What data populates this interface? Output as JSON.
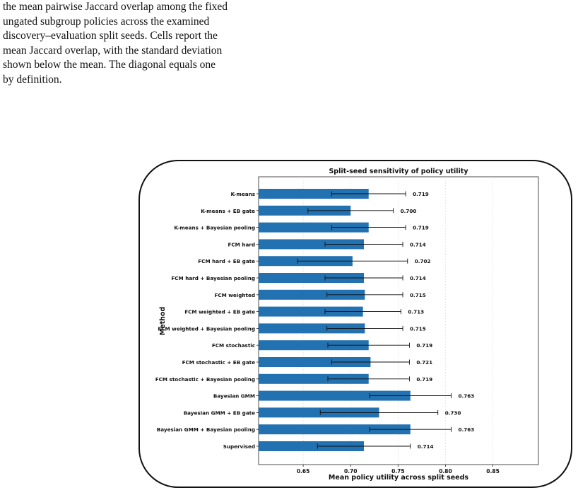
{
  "caption": {
    "lines": [
      "the mean pairwise Jaccard overlap among the fixed",
      "ungated subgroup policies across the examined",
      "discovery–evaluation split seeds. Cells report the",
      "mean Jaccard overlap, with the standard deviation",
      "shown below the mean. The diagonal equals one",
      "by definition."
    ]
  },
  "chart_data": {
    "type": "bar",
    "orientation": "horizontal",
    "title": "Split-seed sensitivity of policy utility",
    "xlabel": "Mean policy utility across split seeds",
    "ylabel": "Method",
    "xlim": [
      0.603,
      0.898
    ],
    "xticks": [
      0.65,
      0.7,
      0.75,
      0.8,
      0.85
    ],
    "xtick_labels": [
      "0.65",
      "0.70",
      "0.75",
      "0.80",
      "0.85"
    ],
    "grid": "vertical dashed",
    "bar_color": "#2271b1",
    "categories": [
      "K-means",
      "K-means + EB gate",
      "K-means + Bayesian pooling",
      "FCM hard",
      "FCM hard + EB gate",
      "FCM hard + Bayesian pooling",
      "FCM weighted",
      "FCM weighted + EB gate",
      "FCM weighted + Bayesian pooling",
      "FCM stochastic",
      "FCM stochastic + EB gate",
      "FCM stochastic + Bayesian pooling",
      "Bayesian GMM",
      "Bayesian GMM + EB gate",
      "Bayesian GMM + Bayesian pooling",
      "Supervised"
    ],
    "values": [
      0.719,
      0.7,
      0.719,
      0.714,
      0.702,
      0.714,
      0.715,
      0.713,
      0.715,
      0.719,
      0.721,
      0.719,
      0.763,
      0.73,
      0.763,
      0.714
    ],
    "errors": [
      0.039,
      0.045,
      0.039,
      0.041,
      0.058,
      0.041,
      0.04,
      0.04,
      0.04,
      0.043,
      0.041,
      0.043,
      0.043,
      0.062,
      0.043,
      0.049
    ],
    "value_labels": [
      "0.719",
      "0.700",
      "0.719",
      "0.714",
      "0.702",
      "0.714",
      "0.715",
      "0.713",
      "0.715",
      "0.719",
      "0.721",
      "0.719",
      "0.763",
      "0.730",
      "0.763",
      "0.714"
    ]
  }
}
